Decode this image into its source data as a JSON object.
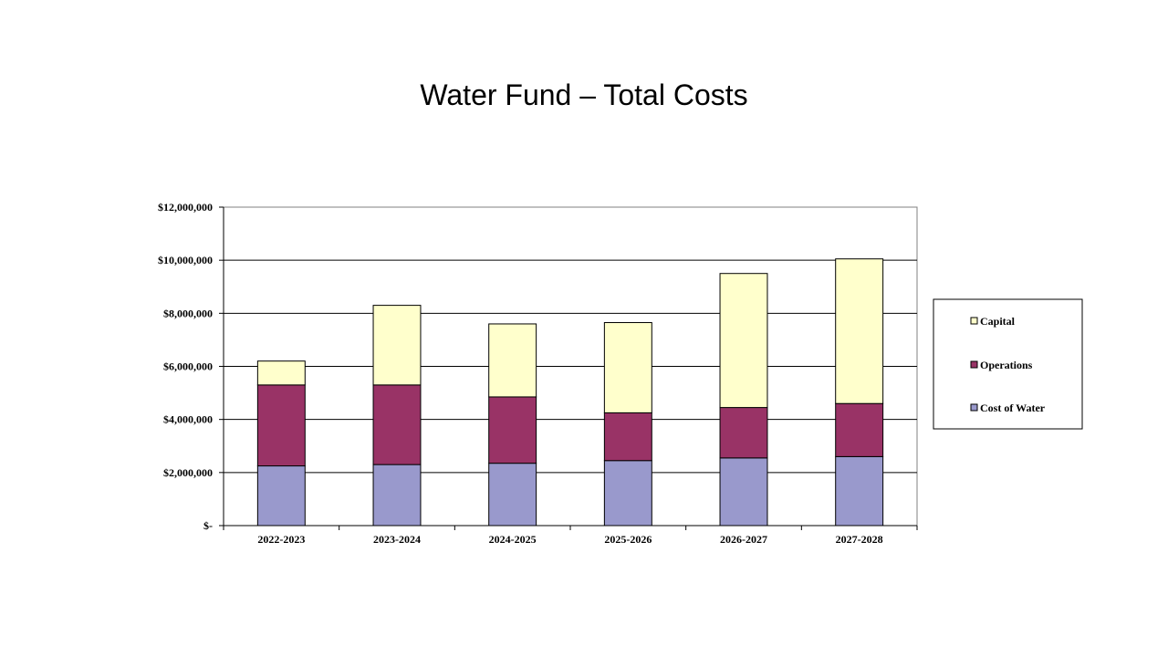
{
  "chart_data": {
    "type": "bar",
    "stacked": true,
    "title": "Water Fund – Total Costs",
    "xlabel": "",
    "ylabel": "",
    "categories": [
      "2022-2023",
      "2023-2024",
      "2024-2025",
      "2025-2026",
      "2026-2027",
      "2027-2028"
    ],
    "series": [
      {
        "name": "Cost of Water",
        "color": "#9999cc",
        "values": [
          2250000,
          2300000,
          2350000,
          2450000,
          2550000,
          2600000
        ]
      },
      {
        "name": "Operations",
        "color": "#993366",
        "values": [
          3050000,
          3000000,
          2500000,
          1800000,
          1900000,
          2000000
        ]
      },
      {
        "name": "Capital",
        "color": "#ffffcc",
        "values": [
          900000,
          3000000,
          2750000,
          3400000,
          5050000,
          5450000
        ]
      }
    ],
    "ylim": [
      0,
      12000000
    ],
    "yticks": [
      0,
      2000000,
      4000000,
      6000000,
      8000000,
      10000000,
      12000000
    ],
    "ytick_labels": [
      "$-",
      "$2,000,000",
      "$4,000,000",
      "$6,000,000",
      "$8,000,000",
      "$10,000,000",
      "$12,000,000"
    ],
    "legend_order": [
      "Capital",
      "Operations",
      "Cost of Water"
    ],
    "legend_position": "right",
    "grid": true
  }
}
